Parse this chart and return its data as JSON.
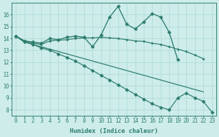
{
  "series": [
    {
      "x": [
        0,
        1,
        2,
        3,
        4,
        5,
        6,
        7,
        8,
        9,
        10,
        11,
        12,
        13,
        14,
        15,
        16,
        17,
        18,
        19
      ],
      "y": [
        14.2,
        13.8,
        13.7,
        13.6,
        14.0,
        13.9,
        14.1,
        14.2,
        14.1,
        13.3,
        14.3,
        15.8,
        16.7,
        15.2,
        14.8,
        15.4,
        16.1,
        15.8,
        14.5,
        12.2
      ],
      "color": "#2e7d6e",
      "linewidth": 1.0,
      "marker": "D",
      "markersize": 2.5
    },
    {
      "x": [
        0,
        1,
        2,
        3,
        4,
        5,
        6,
        7,
        8,
        9,
        10,
        11,
        12,
        13,
        14,
        15,
        16,
        17,
        18,
        19,
        20,
        21,
        22
      ],
      "y": [
        14.2,
        13.8,
        13.6,
        13.5,
        13.8,
        13.85,
        13.9,
        14.0,
        14.05,
        14.05,
        14.1,
        14.05,
        14.0,
        13.9,
        13.8,
        13.75,
        13.6,
        13.5,
        13.3,
        13.1,
        12.9,
        12.6,
        12.3
      ],
      "color": "#2e7d6e",
      "linewidth": 0.9,
      "marker": "P",
      "markersize": 2.0
    },
    {
      "x": [
        0,
        1,
        2,
        3,
        4,
        5,
        6,
        7,
        8,
        9,
        10,
        11,
        12,
        13,
        14,
        15,
        16,
        17,
        18,
        19,
        20,
        21,
        22
      ],
      "y": [
        14.2,
        13.7,
        13.5,
        13.3,
        13.1,
        12.9,
        12.7,
        12.5,
        12.3,
        12.1,
        11.9,
        11.7,
        11.5,
        11.3,
        11.1,
        10.9,
        10.7,
        10.5,
        10.3,
        10.1,
        9.9,
        9.7,
        9.5
      ],
      "color": "#2e7d6e",
      "linewidth": 0.9,
      "marker": null,
      "markersize": 0
    },
    {
      "x": [
        0,
        1,
        2,
        3,
        4,
        5,
        6,
        7,
        8,
        9,
        10,
        11,
        12,
        13,
        14,
        15,
        16,
        17,
        18,
        19,
        20,
        21,
        22,
        23
      ],
      "y": [
        14.2,
        13.7,
        13.5,
        13.2,
        13.0,
        12.7,
        12.4,
        12.1,
        11.7,
        11.3,
        10.9,
        10.5,
        10.1,
        9.7,
        9.3,
        8.9,
        8.5,
        8.2,
        8.0,
        9.0,
        9.4,
        9.0,
        8.7,
        7.8
      ],
      "color": "#2e7d6e",
      "linewidth": 0.9,
      "marker": "D",
      "markersize": 2.5
    }
  ],
  "xlim": [
    -0.5,
    23.5
  ],
  "ylim": [
    7.5,
    17.0
  ],
  "xticks": [
    0,
    1,
    2,
    3,
    4,
    5,
    6,
    7,
    8,
    9,
    10,
    11,
    12,
    13,
    14,
    15,
    16,
    17,
    18,
    19,
    20,
    21,
    22,
    23
  ],
  "yticks": [
    8,
    9,
    10,
    11,
    12,
    13,
    14,
    15,
    16
  ],
  "xlabel": "Humidex (Indice chaleur)",
  "background_color": "#cdecea",
  "grid_color": "#a8d8d4",
  "line_color": "#2e7d6e",
  "tick_fontsize": 5.5,
  "label_fontsize": 6.5
}
